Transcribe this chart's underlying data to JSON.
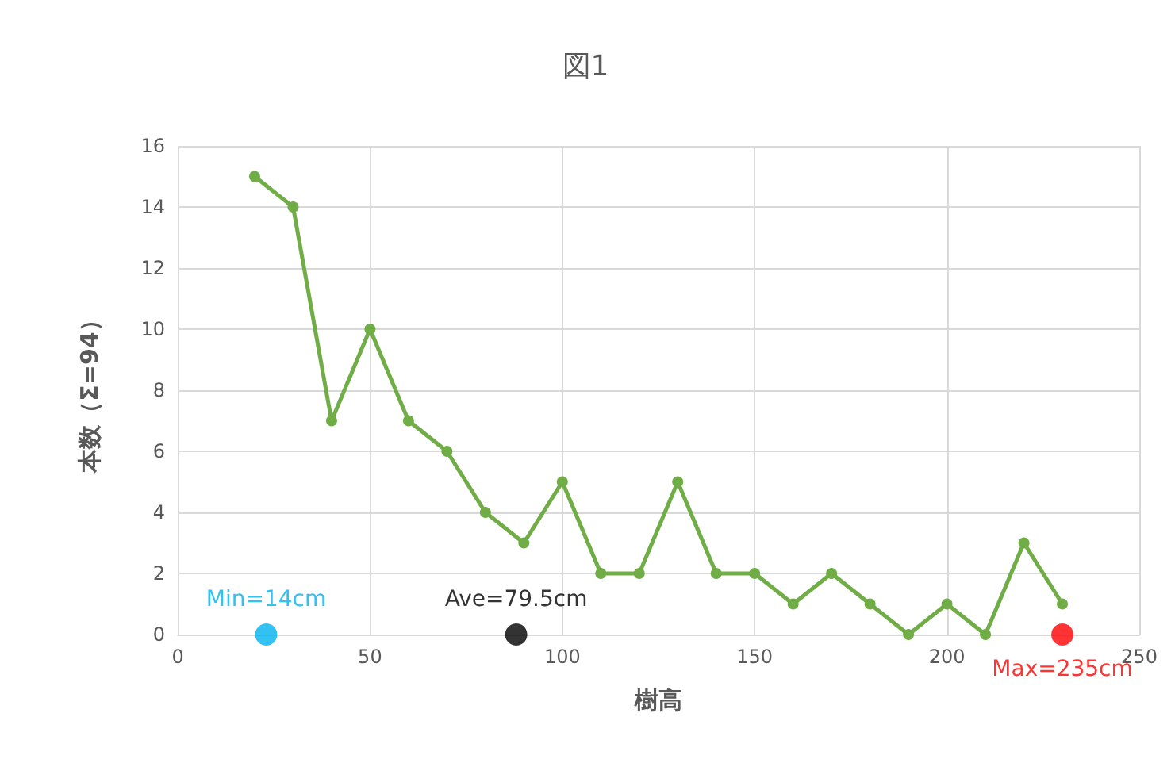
{
  "chart_data": {
    "type": "line",
    "title": "図1",
    "xlabel": "樹高",
    "ylabel": "本数（Σ=94）",
    "xlim": [
      0,
      250
    ],
    "xticks": [
      0,
      50,
      100,
      150,
      200,
      250
    ],
    "ylim": [
      0,
      16
    ],
    "yticks": [
      0,
      2,
      4,
      6,
      8,
      10,
      12,
      14,
      16
    ],
    "grid": true,
    "legend": false,
    "marker": "circle",
    "line_style": "solid",
    "series": [
      {
        "color": "#70ad47",
        "x": [
          20,
          30,
          40,
          50,
          60,
          70,
          80,
          90,
          100,
          110,
          120,
          130,
          140,
          150,
          160,
          170,
          180,
          190,
          200,
          210,
          220,
          230
        ],
        "values": [
          15,
          14,
          7,
          10,
          7,
          6,
          4,
          3,
          5,
          2,
          2,
          5,
          2,
          2,
          1,
          2,
          1,
          0,
          1,
          0,
          3,
          1
        ]
      },
      {
        "type": "scatter",
        "name": "Min=14cm",
        "color": "#00b0f0",
        "x": [
          23
        ],
        "values": [
          0
        ]
      },
      {
        "type": "scatter",
        "name": "Ave=79.5cm",
        "color": "#000000",
        "x": [
          88
        ],
        "values": [
          0
        ]
      },
      {
        "type": "scatter",
        "name": "Max=235cm",
        "color": "#ff0000",
        "x": [
          230
        ],
        "values": [
          0
        ]
      }
    ]
  }
}
